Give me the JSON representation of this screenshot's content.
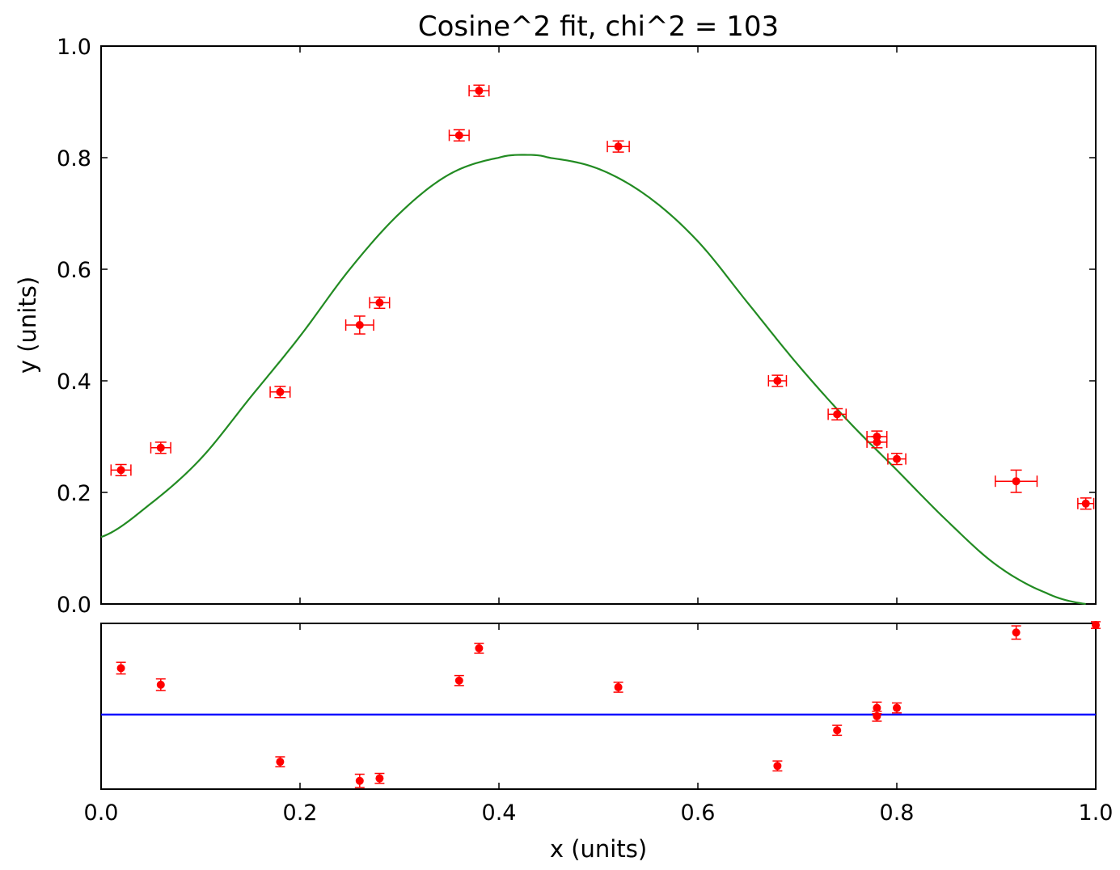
{
  "chart_data": {
    "type": "scatter",
    "title": "Cosine^2 fit, chi^2 = 103",
    "xlabel": "x (units)",
    "ylabel": "y (units)",
    "xlim": [
      0.0,
      1.0
    ],
    "ylim": [
      0.0,
      1.0
    ],
    "x_ticks": [
      "0.0",
      "0.2",
      "0.4",
      "0.6",
      "0.8",
      "1.0"
    ],
    "y_ticks": [
      "0.0",
      "0.2",
      "0.4",
      "0.6",
      "0.8",
      "1.0"
    ],
    "grid": false,
    "colors": {
      "data": "#ff0000",
      "fit": "#228B22",
      "residual_baseline": "#0000ff"
    },
    "series": [
      {
        "points": [
          {
            "x": 0.02,
            "y": 0.24,
            "xerr": 0.01,
            "yerr": 0.01
          },
          {
            "x": 0.06,
            "y": 0.28,
            "xerr": 0.01,
            "yerr": 0.01
          },
          {
            "x": 0.18,
            "y": 0.38,
            "xerr": 0.01,
            "yerr": 0.01
          },
          {
            "x": 0.26,
            "y": 0.5,
            "xerr": 0.014,
            "yerr": 0.016
          },
          {
            "x": 0.28,
            "y": 0.54,
            "xerr": 0.01,
            "yerr": 0.01
          },
          {
            "x": 0.36,
            "y": 0.84,
            "xerr": 0.01,
            "yerr": 0.01
          },
          {
            "x": 0.38,
            "y": 0.92,
            "xerr": 0.01,
            "yerr": 0.01
          },
          {
            "x": 0.52,
            "y": 0.82,
            "xerr": 0.011,
            "yerr": 0.01
          },
          {
            "x": 0.68,
            "y": 0.4,
            "xerr": 0.009,
            "yerr": 0.01
          },
          {
            "x": 0.74,
            "y": 0.34,
            "xerr": 0.009,
            "yerr": 0.01
          },
          {
            "x": 0.78,
            "y": 0.29,
            "xerr": 0.01,
            "yerr": 0.01
          },
          {
            "x": 0.78,
            "y": 0.3,
            "xerr": 0.01,
            "yerr": 0.01
          },
          {
            "x": 0.8,
            "y": 0.26,
            "xerr": 0.009,
            "yerr": 0.01
          },
          {
            "x": 0.92,
            "y": 0.22,
            "xerr": 0.021,
            "yerr": 0.02
          },
          {
            "x": 0.99,
            "y": 0.18,
            "xerr": 0.008,
            "yerr": 0.01
          }
        ]
      },
      {
        "curve": {
          "x": [
            0.0,
            0.05,
            0.1,
            0.15,
            0.2,
            0.25,
            0.3,
            0.35,
            0.4,
            0.43,
            0.45,
            0.5,
            0.55,
            0.6,
            0.65,
            0.7,
            0.75,
            0.8,
            0.85,
            0.9,
            0.95,
            0.99
          ],
          "y": [
            0.12,
            0.18,
            0.26,
            0.37,
            0.48,
            0.6,
            0.7,
            0.77,
            0.8,
            0.805,
            0.8,
            0.78,
            0.73,
            0.65,
            0.54,
            0.43,
            0.33,
            0.24,
            0.15,
            0.07,
            0.02,
            0.0
          ]
        }
      }
    ],
    "residuals": {
      "points": [
        {
          "x": 0.02,
          "y": 0.056,
          "yerr": 0.007
        },
        {
          "x": 0.06,
          "y": 0.036,
          "yerr": 0.007
        },
        {
          "x": 0.18,
          "y": -0.057,
          "yerr": 0.006
        },
        {
          "x": 0.26,
          "y": -0.08,
          "yerr": 0.008
        },
        {
          "x": 0.28,
          "y": -0.077,
          "yerr": 0.006
        },
        {
          "x": 0.36,
          "y": 0.041,
          "yerr": 0.006
        },
        {
          "x": 0.38,
          "y": 0.08,
          "yerr": 0.006
        },
        {
          "x": 0.52,
          "y": 0.033,
          "yerr": 0.006
        },
        {
          "x": 0.68,
          "y": -0.062,
          "yerr": 0.006
        },
        {
          "x": 0.74,
          "y": -0.019,
          "yerr": 0.006
        },
        {
          "x": 0.78,
          "y": -0.002,
          "yerr": 0.006
        },
        {
          "x": 0.78,
          "y": 0.008,
          "yerr": 0.007
        },
        {
          "x": 0.8,
          "y": 0.008,
          "yerr": 0.006
        },
        {
          "x": 0.92,
          "y": 0.099,
          "yerr": 0.008
        },
        {
          "x": 1.0,
          "y": 0.108,
          "yerr": 0.004
        }
      ],
      "ylim": [
        -0.09,
        0.11
      ],
      "baseline": 0.0
    }
  }
}
